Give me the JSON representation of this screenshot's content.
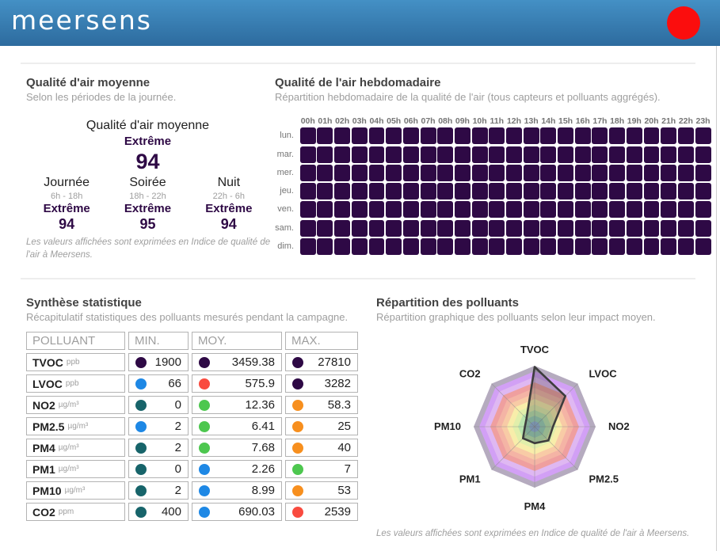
{
  "header": {
    "logo_text": "meersens",
    "record_dot_color": "#fb0d0d"
  },
  "average_section": {
    "title": "Qualité d'air moyenne",
    "subtitle": "Selon les périodes de la journée.",
    "overall": {
      "label": "Qualité d'air moyenne",
      "level": "Extrême",
      "value": "94"
    },
    "periods": [
      {
        "label": "Journée",
        "hours": "6h - 18h",
        "level": "Extrême",
        "value": "94"
      },
      {
        "label": "Soirée",
        "hours": "18h - 22h",
        "level": "Extrême",
        "value": "95"
      },
      {
        "label": "Nuit",
        "hours": "22h - 6h",
        "level": "Extrême",
        "value": "94"
      }
    ],
    "footnote": "Les valeurs affichées sont exprimées en Indice de qualité de l'air à Meersens."
  },
  "weekly_section": {
    "title": "Qualité de l'air hebdomadaire",
    "subtitle": "Répartition hebdomadaire de la qualité de l'air (tous capteurs et polluants aggrégés).",
    "hours": [
      "00h",
      "01h",
      "02h",
      "03h",
      "04h",
      "05h",
      "06h",
      "07h",
      "08h",
      "09h",
      "10h",
      "11h",
      "12h",
      "13h",
      "14h",
      "15h",
      "16h",
      "17h",
      "18h",
      "19h",
      "20h",
      "21h",
      "22h",
      "23h"
    ],
    "days": [
      "lun.",
      "mar.",
      "mer.",
      "jeu.",
      "ven.",
      "sam.",
      "dim."
    ],
    "cell_color": "#2e0945"
  },
  "stats_section": {
    "title": "Synthèse statistique",
    "subtitle": "Récapitulatif statistiques des polluants mesurés pendant la campagne.",
    "columns": [
      "POLLUANT",
      "MIN.",
      "MOY.",
      "MAX."
    ],
    "rows": [
      {
        "name": "TVOC",
        "unit": "ppb",
        "min": "1900",
        "min_color": "#2e0945",
        "moy": "3459.38",
        "moy_color": "#2e0945",
        "max": "27810",
        "max_color": "#2e0945"
      },
      {
        "name": "LVOC",
        "unit": "ppb",
        "min": "66",
        "min_color": "#1e88e5",
        "moy": "575.9",
        "moy_color": "#f94b3f",
        "max": "3282",
        "max_color": "#2e0945"
      },
      {
        "name": "NO2",
        "unit": "µg/m³",
        "min": "0",
        "min_color": "#17646a",
        "moy": "12.36",
        "moy_color": "#4dc74f",
        "max": "58.3",
        "max_color": "#f78f1e"
      },
      {
        "name": "PM2.5",
        "unit": "µg/m³",
        "min": "2",
        "min_color": "#1e88e5",
        "moy": "6.41",
        "moy_color": "#4dc74f",
        "max": "25",
        "max_color": "#f78f1e"
      },
      {
        "name": "PM4",
        "unit": "µg/m³",
        "min": "2",
        "min_color": "#17646a",
        "moy": "7.68",
        "moy_color": "#4dc74f",
        "max": "40",
        "max_color": "#f78f1e"
      },
      {
        "name": "PM1",
        "unit": "µg/m³",
        "min": "0",
        "min_color": "#17646a",
        "moy": "2.26",
        "moy_color": "#1e88e5",
        "max": "7",
        "max_color": "#4dc74f"
      },
      {
        "name": "PM10",
        "unit": "µg/m³",
        "min": "2",
        "min_color": "#17646a",
        "moy": "8.99",
        "moy_color": "#1e88e5",
        "max": "53",
        "max_color": "#f78f1e"
      },
      {
        "name": "CO2",
        "unit": "ppm",
        "min": "400",
        "min_color": "#17646a",
        "moy": "690.03",
        "moy_color": "#1e88e5",
        "max": "2539",
        "max_color": "#f94b3f"
      }
    ]
  },
  "radar_section": {
    "title": "Répartition des polluants",
    "subtitle": "Répartition graphique des polluants selon leur impact moyen.",
    "footnote": "Les valeurs affichées sont exprimées en Indice de qualité de l'air à Meersens."
  },
  "chart_data": [
    {
      "type": "heatmap",
      "title": "Qualité de l'air hebdomadaire",
      "x": [
        "00h",
        "01h",
        "02h",
        "03h",
        "04h",
        "05h",
        "06h",
        "07h",
        "08h",
        "09h",
        "10h",
        "11h",
        "12h",
        "13h",
        "14h",
        "15h",
        "16h",
        "17h",
        "18h",
        "19h",
        "20h",
        "21h",
        "22h",
        "23h"
      ],
      "y": [
        "lun.",
        "mar.",
        "mer.",
        "jeu.",
        "ven.",
        "sam.",
        "dim."
      ],
      "values_note": "All 7x24 cells are uniform dark purple = Extrême level (Meersens index ~94)",
      "cell_color": "#2e0945"
    },
    {
      "type": "radar",
      "title": "Répartition des polluants",
      "categories": [
        "TVOC",
        "LVOC",
        "NO2",
        "PM2.5",
        "PM4",
        "PM1",
        "PM10",
        "CO2"
      ],
      "values": [
        98,
        71,
        30,
        32,
        27,
        27,
        16,
        19
      ],
      "scale_min": 0,
      "scale_max": 100,
      "line_color": "#3d3d3d",
      "fill_color": "rgba(60,60,60,0.28)",
      "band_colors_outer_to_inner": [
        "#b5abbf",
        "#d2a0f5",
        "#dfb8f2",
        "#ef9f9f",
        "#f4b4a5",
        "#f8cba6",
        "#f8edaa",
        "#e1efab",
        "#bae5ae",
        "#99d1b7",
        "#91b4da"
      ]
    }
  ]
}
